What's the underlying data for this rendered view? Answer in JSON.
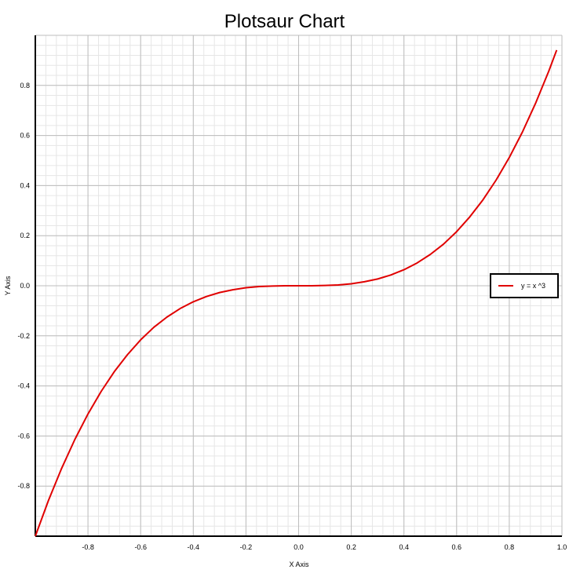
{
  "chart_data": {
    "type": "line",
    "title": "Plotsaur Chart",
    "xlabel": "X Axis",
    "ylabel": "Y Axis",
    "xlim": [
      -1.0,
      1.0
    ],
    "ylim": [
      -1.0,
      1.0
    ],
    "x_ticks": [
      -0.8,
      -0.6,
      -0.4,
      -0.2,
      0.0,
      0.2,
      0.4,
      0.6,
      0.8,
      1.0
    ],
    "y_ticks": [
      -0.8,
      -0.6,
      -0.4,
      -0.2,
      0.0,
      0.2,
      0.4,
      0.6,
      0.8
    ],
    "x_tick_labels": [
      "-0.8",
      "-0.6",
      "-0.4",
      "-0.2",
      "0.0",
      "0.2",
      "0.4",
      "0.6",
      "0.8",
      "1.0"
    ],
    "y_tick_labels": [
      "-0.8",
      "-0.6",
      "-0.4",
      "-0.2",
      "0.0",
      "0.2",
      "0.4",
      "0.6",
      "0.8"
    ],
    "grid": true,
    "legend_position": "right",
    "series": [
      {
        "name": "y = x ^3",
        "color": "#e00000",
        "x": [
          -1.0,
          -0.95,
          -0.9,
          -0.85,
          -0.8,
          -0.75,
          -0.7,
          -0.65,
          -0.6,
          -0.55,
          -0.5,
          -0.45,
          -0.4,
          -0.35,
          -0.3,
          -0.25,
          -0.2,
          -0.15,
          -0.1,
          -0.05,
          0.0,
          0.05,
          0.1,
          0.15,
          0.2,
          0.25,
          0.3,
          0.35,
          0.4,
          0.45,
          0.5,
          0.55,
          0.6,
          0.65,
          0.7,
          0.75,
          0.8,
          0.85,
          0.9,
          0.95,
          0.98
        ],
        "y": [
          -1.0,
          -0.857,
          -0.729,
          -0.614,
          -0.512,
          -0.422,
          -0.343,
          -0.275,
          -0.216,
          -0.166,
          -0.125,
          -0.091,
          -0.064,
          -0.043,
          -0.027,
          -0.016,
          -0.008,
          -0.003,
          -0.001,
          0.0,
          0.0,
          0.0,
          0.001,
          0.003,
          0.008,
          0.016,
          0.027,
          0.043,
          0.064,
          0.091,
          0.125,
          0.166,
          0.216,
          0.275,
          0.343,
          0.422,
          0.512,
          0.614,
          0.729,
          0.857,
          0.941
        ]
      }
    ]
  }
}
